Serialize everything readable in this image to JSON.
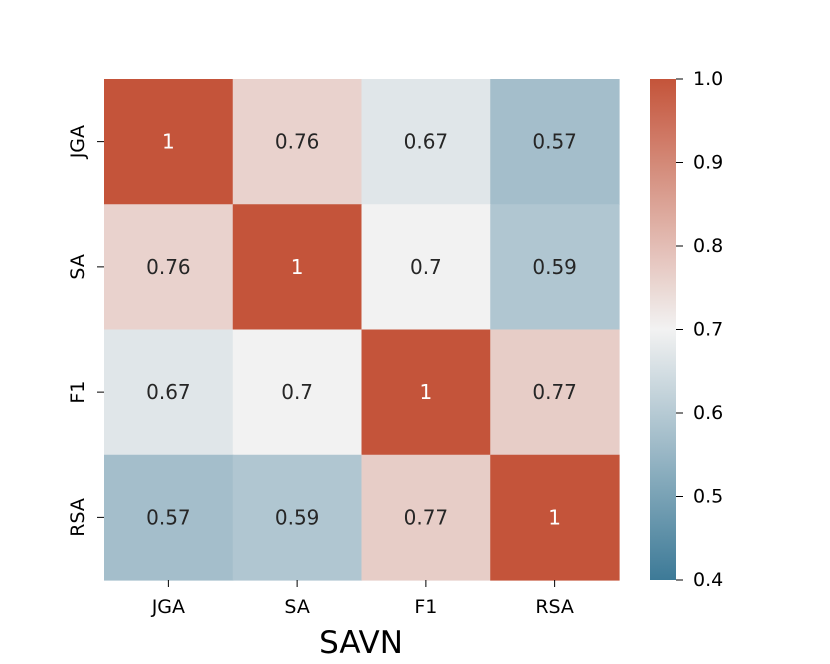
{
  "chart_data": {
    "type": "heatmap",
    "title": "",
    "xlabel": "SAVN",
    "ylabel": "",
    "x_categories": [
      "JGA",
      "SA",
      "F1",
      "RSA"
    ],
    "y_categories": [
      "JGA",
      "SA",
      "F1",
      "RSA"
    ],
    "values": [
      [
        1,
        0.76,
        0.67,
        0.57
      ],
      [
        0.76,
        1,
        0.7,
        0.59
      ],
      [
        0.67,
        0.7,
        1,
        0.77
      ],
      [
        0.57,
        0.59,
        0.77,
        1
      ]
    ],
    "annotations": [
      [
        "1",
        "0.76",
        "0.67",
        "0.57"
      ],
      [
        "0.76",
        "1",
        "0.7",
        "0.59"
      ],
      [
        "0.67",
        "0.7",
        "1",
        "0.77"
      ],
      [
        "0.57",
        "0.59",
        "0.77",
        "1"
      ]
    ],
    "colorbar": {
      "vmin": 0.4,
      "vmax": 1.0,
      "center": 0.7,
      "ticks": [
        "0.4",
        "0.5",
        "0.6",
        "0.7",
        "0.8",
        "0.9",
        "1.0"
      ],
      "low_color": "#3d7a97",
      "mid_color": "#f2f2f2",
      "high_color": "#c4543a"
    },
    "grid": false,
    "legend": "colorbar-right"
  }
}
